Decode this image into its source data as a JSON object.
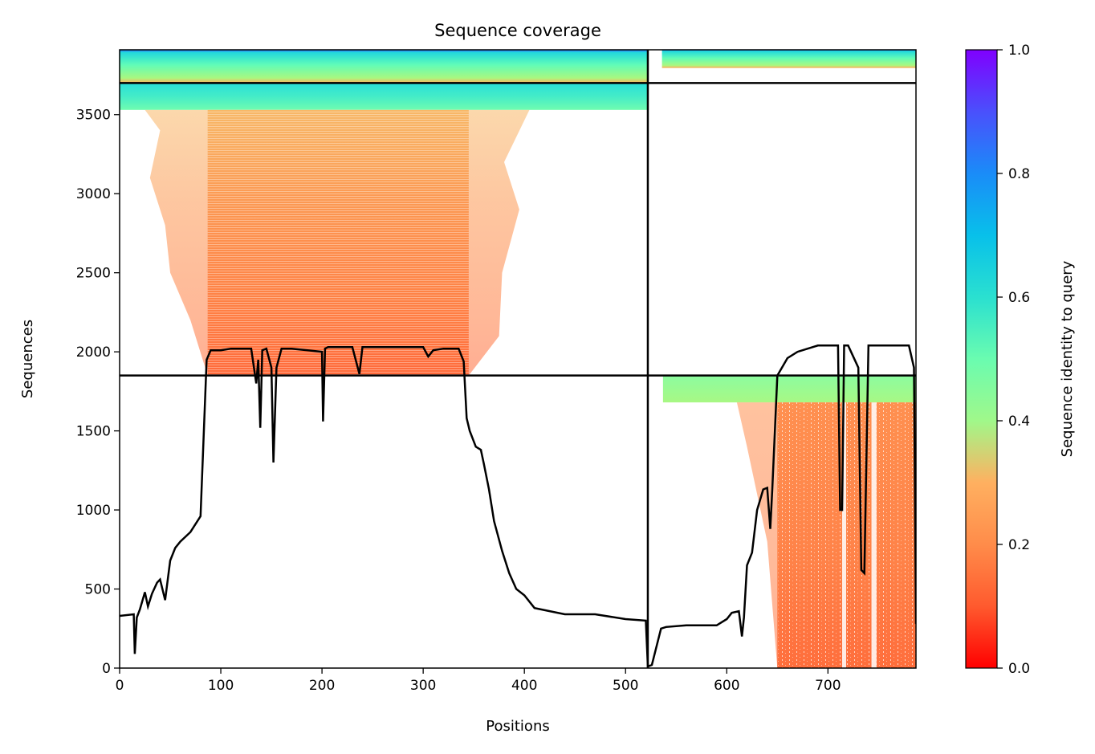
{
  "chart_data": {
    "type": "heatmap",
    "title": "Sequence coverage",
    "xlabel": "Positions",
    "ylabel": "Sequences",
    "xlim": [
      0,
      787
    ],
    "ylim": [
      0,
      3910
    ],
    "xticks": [
      0,
      100,
      200,
      300,
      400,
      500,
      600,
      700
    ],
    "yticks": [
      0,
      500,
      1000,
      1500,
      2000,
      2500,
      3000,
      3500
    ],
    "colorbar": {
      "label": "Sequence identity to query",
      "range": [
        0,
        1
      ],
      "ticks": [
        "0.0",
        "0.2",
        "0.4",
        "0.6",
        "0.8",
        "1.0"
      ],
      "colormap": "rainbow_r"
    },
    "chain_boundary_position": 522,
    "block_boundaries_sequences": [
      1850,
      3700
    ],
    "coverage_line": {
      "x": [
        0,
        14,
        15,
        17,
        20,
        25,
        28,
        32,
        37,
        40,
        45,
        50,
        55,
        60,
        70,
        80,
        86,
        90,
        100,
        110,
        130,
        135,
        137,
        139,
        141,
        145,
        150,
        152,
        155,
        160,
        170,
        200,
        201,
        203,
        206,
        230,
        237,
        240,
        245,
        260,
        280,
        300,
        305,
        310,
        320,
        335,
        340,
        343,
        346,
        352,
        357,
        360,
        365,
        370,
        378,
        385,
        392,
        400,
        410,
        425,
        440,
        470,
        500,
        520,
        522,
        526,
        535,
        540,
        560,
        590,
        600,
        605,
        612,
        615,
        617,
        620,
        625,
        630,
        636,
        640,
        643,
        645,
        650,
        660,
        670,
        680,
        690,
        710,
        712,
        714,
        716,
        720,
        730,
        733,
        736,
        740,
        745,
        750,
        760,
        780,
        785,
        787
      ],
      "y": [
        330,
        340,
        90,
        320,
        370,
        480,
        390,
        470,
        540,
        560,
        430,
        680,
        760,
        800,
        860,
        960,
        1950,
        2010,
        2010,
        2020,
        2020,
        1800,
        1950,
        1520,
        2010,
        2020,
        1900,
        1300,
        1900,
        2020,
        2020,
        2000,
        1560,
        2020,
        2030,
        2030,
        1860,
        2030,
        2030,
        2030,
        2030,
        2030,
        1970,
        2010,
        2020,
        2020,
        1940,
        1580,
        1500,
        1400,
        1380,
        1290,
        1130,
        930,
        740,
        600,
        500,
        460,
        380,
        360,
        340,
        340,
        310,
        300,
        10,
        20,
        250,
        260,
        270,
        270,
        310,
        350,
        360,
        200,
        320,
        650,
        730,
        1000,
        1130,
        1140,
        880,
        1130,
        1850,
        1960,
        2000,
        2020,
        2040,
        2040,
        1000,
        1000,
        2040,
        2040,
        1900,
        620,
        600,
        2040,
        2040,
        2040,
        2040,
        2040,
        1900,
        280
      ]
    }
  }
}
